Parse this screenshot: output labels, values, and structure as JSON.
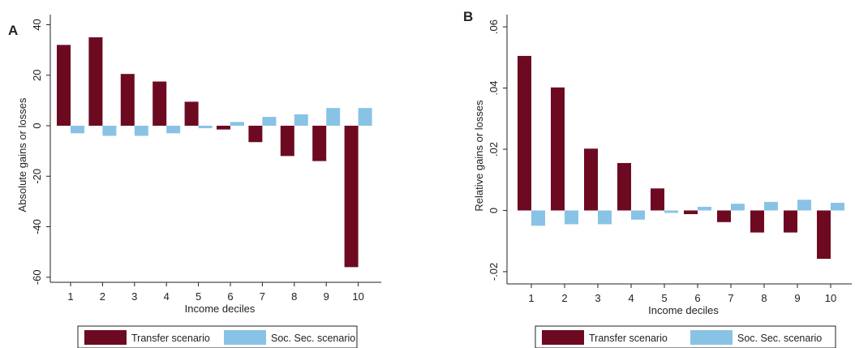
{
  "colors": {
    "transfer": "#6d0a21",
    "socsec": "#88c3e6",
    "axis": "#222222"
  },
  "chart_data": [
    {
      "type": "bar",
      "panel_label": "A",
      "categories": [
        "1",
        "2",
        "3",
        "4",
        "5",
        "6",
        "7",
        "8",
        "9",
        "10"
      ],
      "series": [
        {
          "name": "Transfer scenario",
          "values": [
            32,
            35,
            20.5,
            17.5,
            9.5,
            -1.5,
            -6.5,
            -12,
            -14,
            -56
          ]
        },
        {
          "name": "Soc. Sec. scenario",
          "values": [
            -3,
            -4,
            -4,
            -3,
            -1,
            1.5,
            3.5,
            4.5,
            7,
            7
          ]
        }
      ],
      "xlabel": "Income deciles",
      "ylabel": "Absolute gains or losses",
      "ylim": [
        -62,
        44
      ],
      "yticks": [
        40,
        20,
        0,
        -20,
        -40,
        -60
      ],
      "ytick_labels": [
        "40",
        "20",
        "0",
        "-20",
        "-40",
        "-60"
      ],
      "legend": {
        "position": "bottom",
        "entries": [
          "Transfer scenario",
          "Soc. Sec. scenario"
        ]
      }
    },
    {
      "type": "bar",
      "panel_label": "B",
      "categories": [
        "1",
        "2",
        "3",
        "4",
        "5",
        "6",
        "7",
        "8",
        "9",
        "10"
      ],
      "series": [
        {
          "name": "Transfer scenario",
          "values": [
            0.0505,
            0.0402,
            0.0202,
            0.0155,
            0.0072,
            -0.0012,
            -0.0038,
            -0.0072,
            -0.0072,
            -0.0158
          ]
        },
        {
          "name": "Soc. Sec. scenario",
          "values": [
            -0.005,
            -0.0045,
            -0.0045,
            -0.003,
            -0.0008,
            0.0012,
            0.0022,
            0.0028,
            0.0035,
            0.0025
          ]
        }
      ],
      "xlabel": "Income deciles",
      "ylabel": "Relative gains or losses",
      "ylim": [
        -0.024,
        0.064
      ],
      "yticks": [
        0.06,
        0.04,
        0.02,
        0,
        -0.02
      ],
      "ytick_labels": [
        ".06",
        ".04",
        ".02",
        "0",
        "-.02"
      ],
      "legend": {
        "position": "bottom",
        "entries": [
          "Transfer scenario",
          "Soc. Sec. scenario"
        ]
      }
    }
  ]
}
